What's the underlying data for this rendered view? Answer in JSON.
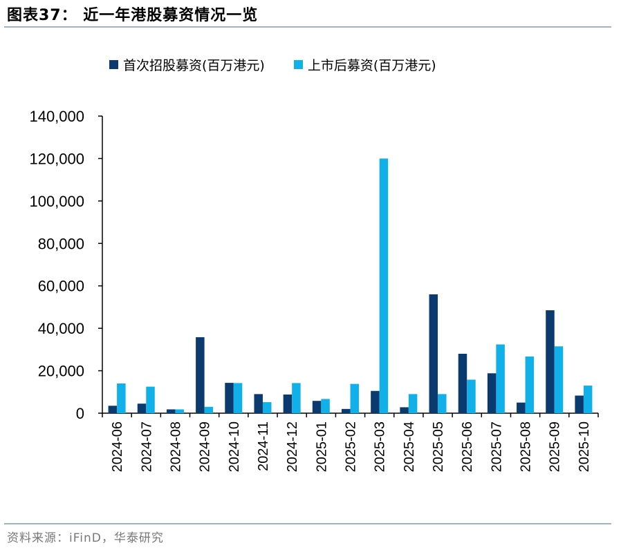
{
  "header": {
    "title": "图表37：  近一年港股募资情况一览"
  },
  "footer": {
    "source": "资料来源：iFinD，华泰研究"
  },
  "colors": {
    "ipo": "#0b3a6e",
    "post": "#12b0e8",
    "rule": "#9bb4c8"
  },
  "chart_data": {
    "type": "bar",
    "categories": [
      "2024-06",
      "2024-07",
      "2024-08",
      "2024-09",
      "2024-10",
      "2024-11",
      "2024-12",
      "2025-01",
      "2025-02",
      "2025-03",
      "2025-04",
      "2025-05",
      "2025-06",
      "2025-07",
      "2025-08",
      "2025-09",
      "2025-10"
    ],
    "series": [
      {
        "name": "首次招股募资(百万港元)",
        "values": [
          3500,
          4500,
          1800,
          35800,
          14300,
          9000,
          8800,
          5800,
          2000,
          10500,
          2800,
          56000,
          28000,
          18800,
          5000,
          48500,
          8300
        ]
      },
      {
        "name": "上市后募资(百万港元)",
        "values": [
          14000,
          12500,
          1800,
          3000,
          14200,
          5200,
          14200,
          6700,
          13800,
          120000,
          9000,
          9000,
          15800,
          32400,
          26700,
          31500,
          13000
        ]
      }
    ],
    "yticks": [
      "0",
      "20,000",
      "40,000",
      "60,000",
      "80,000",
      "100,000",
      "120,000",
      "140,000"
    ],
    "ylim": [
      0,
      140000
    ],
    "xlabel": "",
    "ylabel": "",
    "legend_position": "top",
    "grid": false
  }
}
